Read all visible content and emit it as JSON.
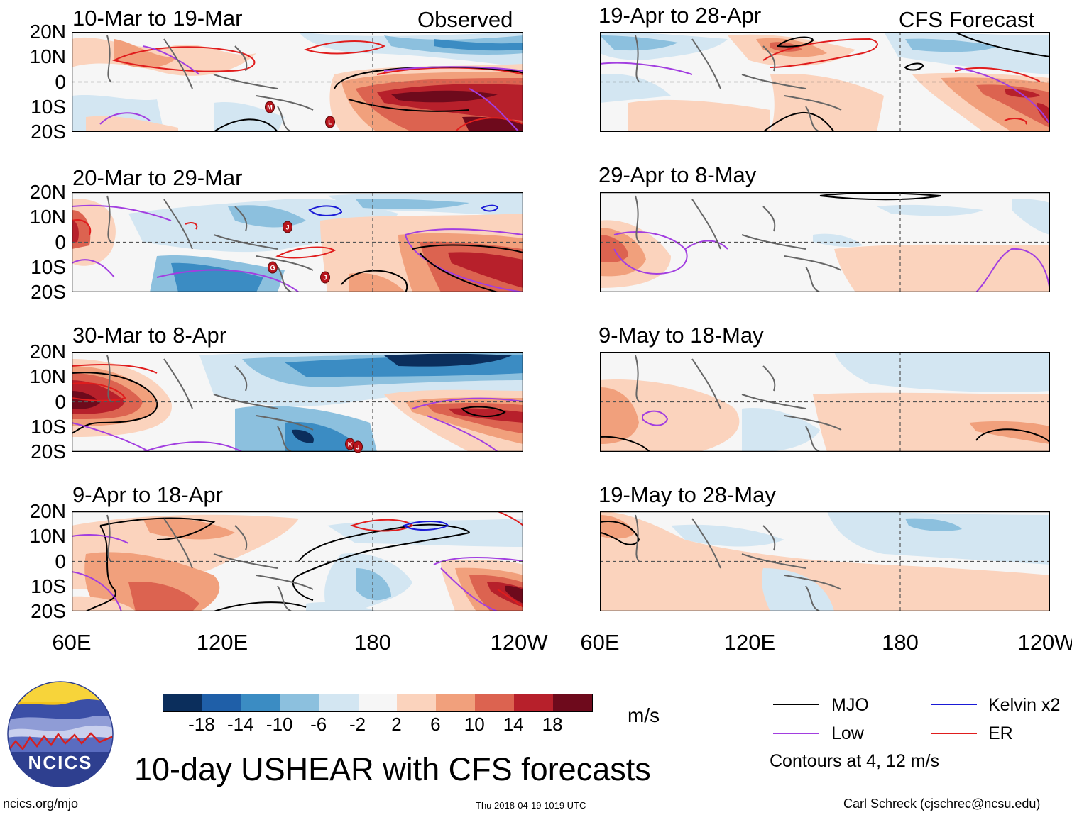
{
  "figure": {
    "title": "10-day USHEAR with CFS forecasts",
    "column_left_label": "Observed",
    "column_right_label": "CFS Forecast",
    "website": "ncics.org/mjo",
    "timestamp": "Thu 2018-04-19 1019 UTC",
    "credit": "Carl Schreck (cjschrec@ncsu.edu)",
    "logo_text": "NCICS"
  },
  "panels": [
    {
      "label": "10-Mar to 19-Mar",
      "source": "Observed"
    },
    {
      "label": "20-Mar to 29-Mar",
      "source": "Observed"
    },
    {
      "label": "30-Mar to 8-Apr",
      "source": "Observed"
    },
    {
      "label": "9-Apr to 18-Apr",
      "source": "Observed"
    },
    {
      "label": "19-Apr to 28-Apr",
      "source": "CFS Forecast"
    },
    {
      "label": "29-Apr to 8-May",
      "source": "CFS Forecast"
    },
    {
      "label": "9-May to 18-May",
      "source": "CFS Forecast"
    },
    {
      "label": "19-May to 28-May",
      "source": "CFS Forecast"
    }
  ],
  "axes": {
    "lat_labels": [
      "20N",
      "10N",
      "0",
      "10S",
      "20S"
    ],
    "lon_labels": [
      "60E",
      "120E",
      "180",
      "120W"
    ],
    "lat_range": [
      -20,
      20
    ],
    "lon_range": [
      60,
      240
    ]
  },
  "colorbar": {
    "units": "m/s",
    "tick_labels": [
      "-18",
      "-14",
      "-10",
      "-6",
      "-2",
      "2",
      "6",
      "10",
      "14",
      "18"
    ],
    "colors": [
      "#0b2e5c",
      "#1f5fa8",
      "#3b8cc3",
      "#8cc0de",
      "#d3e6f2",
      "#f6f6f6",
      "#fbd3bd",
      "#f1a07c",
      "#dc6350",
      "#b7202b",
      "#6e0a1c"
    ]
  },
  "legend": {
    "items": [
      {
        "label": "MJO",
        "color": "#000000"
      },
      {
        "label": "Kelvin x2",
        "color": "#1a1ad6"
      },
      {
        "label": "Low",
        "color": "#a23ee0"
      },
      {
        "label": "ER",
        "color": "#e01d1d"
      }
    ],
    "note": "Contours at 4, 12 m/s"
  },
  "storm_markers": [
    {
      "panel": 0,
      "letter": "M",
      "lon": 139,
      "lat": -10
    },
    {
      "panel": 0,
      "letter": "L",
      "lon": 163,
      "lat": -16
    },
    {
      "panel": 1,
      "letter": "J",
      "lon": 146,
      "lat": 6
    },
    {
      "panel": 1,
      "letter": "G",
      "lon": 140,
      "lat": -10
    },
    {
      "panel": 1,
      "letter": "J",
      "lon": 161,
      "lat": -14
    },
    {
      "panel": 2,
      "letter": "K",
      "lon": 171,
      "lat": -17
    },
    {
      "panel": 2,
      "letter": "J",
      "lon": 174,
      "lat": -18
    }
  ]
}
